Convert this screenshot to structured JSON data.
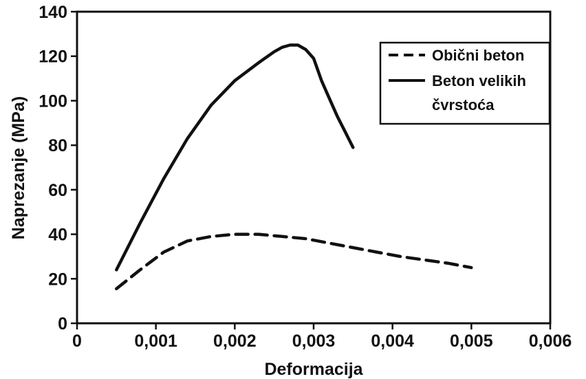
{
  "chart_data": {
    "type": "line",
    "title": "",
    "xlabel": "Deformacija",
    "ylabel": "Naprezanje (MPa)",
    "xlim": [
      0,
      0.006
    ],
    "ylim": [
      0,
      140
    ],
    "x_ticks": [
      0,
      0.001,
      0.002,
      0.003,
      0.004,
      0.005,
      0.006
    ],
    "x_tick_labels": [
      "0",
      "0,001",
      "0,002",
      "0,003",
      "0,004",
      "0,005",
      "0,006"
    ],
    "y_ticks": [
      0,
      20,
      40,
      60,
      80,
      100,
      120,
      140
    ],
    "y_tick_labels": [
      "0",
      "20",
      "40",
      "60",
      "80",
      "100",
      "120",
      "140"
    ],
    "grid": false,
    "legend_position": "top-right",
    "series": [
      {
        "name": "Obični beton",
        "style": "dashed",
        "color": "#111111",
        "points": [
          [
            0.0005,
            15.5
          ],
          [
            0.0008,
            24
          ],
          [
            0.0011,
            32
          ],
          [
            0.0014,
            37
          ],
          [
            0.0017,
            39
          ],
          [
            0.002,
            40
          ],
          [
            0.0023,
            40
          ],
          [
            0.0026,
            39
          ],
          [
            0.0029,
            38
          ],
          [
            0.0032,
            36
          ],
          [
            0.0035,
            34
          ],
          [
            0.0038,
            32
          ],
          [
            0.0041,
            30
          ],
          [
            0.0044,
            28.5
          ],
          [
            0.0047,
            27
          ],
          [
            0.005,
            25
          ]
        ]
      },
      {
        "name": "Beton velikih čvrstoća",
        "legend_lines": [
          "Beton velikih",
          "čvrstoća"
        ],
        "style": "solid",
        "color": "#111111",
        "points": [
          [
            0.0005,
            24
          ],
          [
            0.0008,
            45
          ],
          [
            0.0011,
            65
          ],
          [
            0.0014,
            83
          ],
          [
            0.0017,
            98
          ],
          [
            0.002,
            109
          ],
          [
            0.0023,
            117
          ],
          [
            0.0025,
            122
          ],
          [
            0.0026,
            124
          ],
          [
            0.0027,
            125
          ],
          [
            0.0028,
            125
          ],
          [
            0.0029,
            123
          ],
          [
            0.003,
            119
          ],
          [
            0.0031,
            109
          ],
          [
            0.0032,
            101
          ],
          [
            0.0033,
            93
          ],
          [
            0.0034,
            86
          ],
          [
            0.0035,
            79
          ]
        ]
      }
    ]
  }
}
